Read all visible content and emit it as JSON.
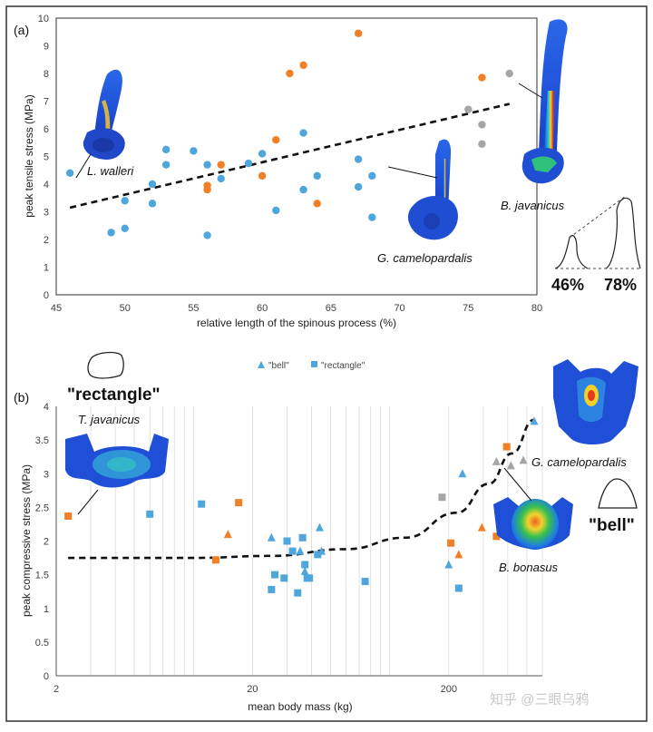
{
  "colors": {
    "blue": "#4ea6dc",
    "orange": "#f07f26",
    "gray": "#a5a5a5",
    "grid_b": "#d9d9d9",
    "frame": "#222222"
  },
  "watermark": "知乎 @三眼乌鸦",
  "chart_data": [
    {
      "panel": "(a)",
      "type": "scatter",
      "xlabel": "relative length of the spinous process (%)",
      "ylabel": "peak tensile stress (MPa)",
      "xlim": [
        45,
        80
      ],
      "ylim": [
        0,
        10
      ],
      "x_ticks": [
        "45",
        "50",
        "55",
        "60",
        "65",
        "70",
        "75",
        "80"
      ],
      "y_ticks": [
        "0",
        "1",
        "2",
        "3",
        "4",
        "5",
        "6",
        "7",
        "8",
        "9",
        "10"
      ],
      "series": [
        {
          "name": "blue",
          "color": "blue",
          "points": [
            [
              46,
              4.4
            ],
            [
              49,
              2.25
            ],
            [
              50,
              2.4
            ],
            [
              50,
              3.4
            ],
            [
              52,
              3.3
            ],
            [
              52,
              4
            ],
            [
              53,
              4.7
            ],
            [
              53,
              5.25
            ],
            [
              55,
              5.2
            ],
            [
              56,
              4.7
            ],
            [
              56,
              2.15
            ],
            [
              57,
              4.2
            ],
            [
              59,
              4.75
            ],
            [
              60,
              5.1
            ],
            [
              61,
              3.05
            ],
            [
              63,
              5.85
            ],
            [
              63,
              3.8
            ],
            [
              64,
              4.3
            ],
            [
              67,
              4.9
            ],
            [
              67,
              3.9
            ],
            [
              68,
              4.3
            ],
            [
              68,
              2.8
            ]
          ]
        },
        {
          "name": "orange",
          "color": "orange",
          "points": [
            [
              56,
              3.8
            ],
            [
              56,
              3.95
            ],
            [
              57,
              4.7
            ],
            [
              60,
              4.3
            ],
            [
              61,
              5.6
            ],
            [
              62,
              8
            ],
            [
              63,
              8.3
            ],
            [
              64,
              3.3
            ],
            [
              67,
              9.45
            ],
            [
              76,
              7.85
            ]
          ]
        },
        {
          "name": "gray",
          "color": "gray",
          "points": [
            [
              75,
              6.7
            ],
            [
              76,
              6.15
            ],
            [
              76,
              5.45
            ],
            [
              78,
              8
            ]
          ]
        }
      ],
      "trendline": {
        "style": "dashed",
        "from": [
          46,
          3.15
        ],
        "to": [
          78,
          6.9
        ]
      },
      "annotations": [
        "L. walleri",
        "G. camelopardalis",
        "B. javanicus",
        "46%",
        "78%"
      ]
    },
    {
      "panel": "(b)",
      "type": "scatter",
      "xscale": "log",
      "xlabel": "mean body mass (kg)",
      "ylabel": "peak compressive stress (MPa)",
      "xlim": [
        2,
        600
      ],
      "ylim": [
        0,
        4
      ],
      "x_ticks": [
        "2",
        "20",
        "200"
      ],
      "y_ticks": [
        "0",
        "0.5",
        "1",
        "1.5",
        "2",
        "2.5",
        "3",
        "3.5",
        "4"
      ],
      "legend": [
        {
          "marker": "triangle",
          "label": "\"bell\""
        },
        {
          "marker": "square",
          "label": "\"rectangle\""
        }
      ],
      "series": [
        {
          "name": "blue triangles",
          "marker": "triangle",
          "color": "blue",
          "points": [
            [
              25,
              2.05
            ],
            [
              35,
              1.85
            ],
            [
              37,
              1.55
            ],
            [
              44,
              2.2
            ],
            [
              45,
              1.85
            ],
            [
              200,
              1.65
            ],
            [
              235,
              3.0
            ],
            [
              545,
              3.78
            ]
          ]
        },
        {
          "name": "blue squares",
          "marker": "square",
          "color": "blue",
          "points": [
            [
              6,
              2.4
            ],
            [
              11,
              2.55
            ],
            [
              25,
              1.28
            ],
            [
              26,
              1.5
            ],
            [
              29,
              1.45
            ],
            [
              30,
              2.0
            ],
            [
              32,
              1.85
            ],
            [
              34,
              1.23
            ],
            [
              36,
              2.05
            ],
            [
              37,
              1.65
            ],
            [
              38,
              1.45
            ],
            [
              39,
              1.45
            ],
            [
              43,
              1.8
            ],
            [
              75,
              1.4
            ],
            [
              225,
              1.3
            ]
          ]
        },
        {
          "name": "orange triangles",
          "marker": "triangle",
          "color": "orange",
          "points": [
            [
              15,
              2.1
            ],
            [
              225,
              1.8
            ],
            [
              295,
              2.2
            ]
          ]
        },
        {
          "name": "orange squares",
          "marker": "square",
          "color": "orange",
          "points": [
            [
              2.3,
              2.37
            ],
            [
              13,
              1.72
            ],
            [
              17,
              2.57
            ],
            [
              205,
              1.97
            ],
            [
              350,
              2.07
            ],
            [
              395,
              3.4
            ]
          ]
        },
        {
          "name": "gray triangles",
          "marker": "triangle",
          "color": "gray",
          "points": [
            [
              350,
              3.18
            ],
            [
              415,
              3.12
            ],
            [
              480,
              3.2
            ]
          ]
        },
        {
          "name": "gray squares",
          "marker": "square",
          "color": "gray",
          "points": [
            [
              185,
              2.65
            ]
          ]
        }
      ],
      "trendline": {
        "style": "dashed",
        "curve": true,
        "points": [
          [
            2.3,
            1.75
          ],
          [
            10,
            1.75
          ],
          [
            25,
            1.78
          ],
          [
            60,
            1.88
          ],
          [
            120,
            2.05
          ],
          [
            220,
            2.42
          ],
          [
            320,
            2.85
          ],
          [
            420,
            3.3
          ],
          [
            545,
            3.8
          ]
        ]
      },
      "annotations": [
        "\"rectangle\"",
        "T. javanicus",
        "G. camelopardalis",
        "B. bonasus",
        "\"bell\""
      ]
    }
  ]
}
